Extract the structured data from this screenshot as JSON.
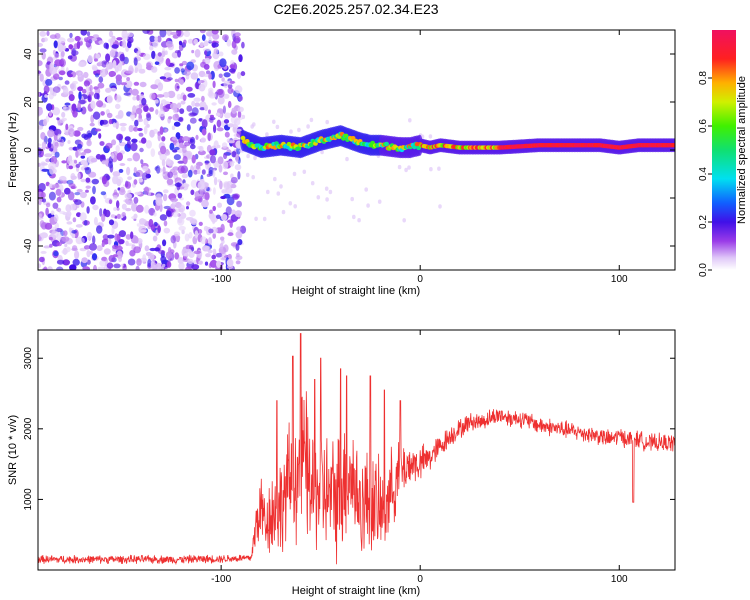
{
  "chart_data": [
    {
      "type": "heatmap",
      "title": "C2E6.2025.257.02.34.E23",
      "xlabel": "Height of straight line (km)",
      "ylabel": "Frequency (Hz)",
      "xlim": [
        -192,
        128
      ],
      "ylim": [
        -50,
        50
      ],
      "xticks": [
        -100,
        0,
        100
      ],
      "yticks": [
        -40,
        -20,
        0,
        20,
        40
      ],
      "colorbar": {
        "label": "Normalized spectral amplitude",
        "range": [
          0,
          1
        ],
        "ticks": [
          0.0,
          0.2,
          0.4,
          0.6,
          0.8
        ]
      },
      "noise_region_x": [
        -192,
        -89
      ],
      "ridge": {
        "x": [
          -89,
          -80,
          -70,
          -60,
          -50,
          -40,
          -30,
          -25,
          -20,
          -10,
          -5,
          0,
          5,
          10,
          20,
          40,
          60,
          80,
          90,
          100,
          110,
          128
        ],
        "freq": [
          4,
          1,
          2,
          1,
          4,
          6,
          3,
          2,
          2,
          1,
          1,
          2,
          1,
          2,
          1,
          1,
          2,
          2,
          2,
          1,
          2,
          2
        ]
      }
    },
    {
      "type": "line",
      "title": "",
      "xlabel": "Height of straight line (km)",
      "ylabel": "SNR (10 * v/v)",
      "xlim": [
        -192,
        128
      ],
      "ylim": [
        0,
        3400
      ],
      "xticks": [
        -100,
        0,
        100
      ],
      "yticks": [
        1000,
        2000,
        3000
      ],
      "series": [
        {
          "name": "SNR",
          "color": "#ee3030",
          "x": [
            -192,
            -150,
            -120,
            -100,
            -85,
            -82,
            -80,
            -78,
            -75,
            -70,
            -65,
            -60,
            -58,
            -55,
            -50,
            -45,
            -40,
            -35,
            -30,
            -25,
            -20,
            -15,
            -10,
            -5,
            0,
            5,
            10,
            15,
            20,
            25,
            30,
            35,
            40,
            45,
            50,
            55,
            60,
            70,
            80,
            90,
            95,
            100,
            105,
            110,
            115,
            120,
            128
          ],
          "mean": [
            150,
            150,
            150,
            160,
            170,
            700,
            900,
            700,
            800,
            900,
            1300,
            1400,
            1600,
            1100,
            1200,
            1000,
            1100,
            1400,
            900,
            1000,
            800,
            1100,
            1400,
            1500,
            1500,
            1600,
            1750,
            1900,
            2000,
            2100,
            2100,
            2150,
            2200,
            2150,
            2150,
            2100,
            2050,
            2000,
            1950,
            1900,
            1850,
            1900,
            1850,
            1850,
            1800,
            1800,
            1800
          ],
          "spread": [
            70,
            70,
            70,
            70,
            70,
            500,
            600,
            550,
            700,
            800,
            1000,
            1200,
            1300,
            1000,
            1100,
            1000,
            1100,
            1000,
            900,
            900,
            800,
            700,
            500,
            350,
            300,
            250,
            200,
            180,
            170,
            150,
            150,
            150,
            150,
            150,
            150,
            150,
            150,
            150,
            150,
            150,
            150,
            150,
            150,
            150,
            150,
            150,
            150
          ],
          "peaks": [
            [
              -60,
              3350
            ],
            [
              -64,
              3030
            ],
            [
              -50,
              3000
            ],
            [
              -40,
              2850
            ],
            [
              -37,
              2750
            ],
            [
              -25,
              2750
            ],
            [
              -18,
              2550
            ],
            [
              -10,
              2400
            ],
            [
              -53,
              2700
            ],
            [
              -72,
              2400
            ]
          ]
        }
      ]
    }
  ]
}
